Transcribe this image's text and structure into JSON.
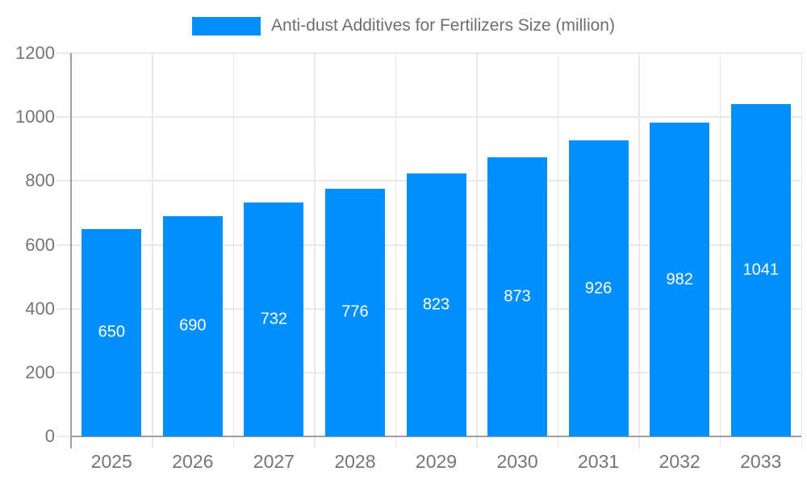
{
  "chart_data": {
    "type": "bar",
    "title": "Anti-dust Additives for Fertilizers Size (million)",
    "categories": [
      "2025",
      "2026",
      "2027",
      "2028",
      "2029",
      "2030",
      "2031",
      "2032",
      "2033"
    ],
    "values": [
      650,
      690,
      732,
      776,
      823,
      873,
      926,
      982,
      1041
    ],
    "series": [
      {
        "name": "Anti-dust Additives for Fertilizers Size (million)",
        "values": [
          650,
          690,
          732,
          776,
          823,
          873,
          926,
          982,
          1041
        ]
      }
    ],
    "xlabel": "",
    "ylabel": "",
    "ylim": [
      0,
      1200
    ],
    "yticks": [
      0,
      200,
      400,
      600,
      800,
      1000,
      1200
    ],
    "grid": true,
    "legend_position": "top",
    "bar_color": "#008FFB",
    "value_label_color": "#ffffff",
    "axis_text_color": "#757575",
    "legend_text_color": "#6e6e6e",
    "gridline_color": "#e9e9e9",
    "axis_line_color": "#9e9e9e",
    "background": "#ffffff"
  }
}
